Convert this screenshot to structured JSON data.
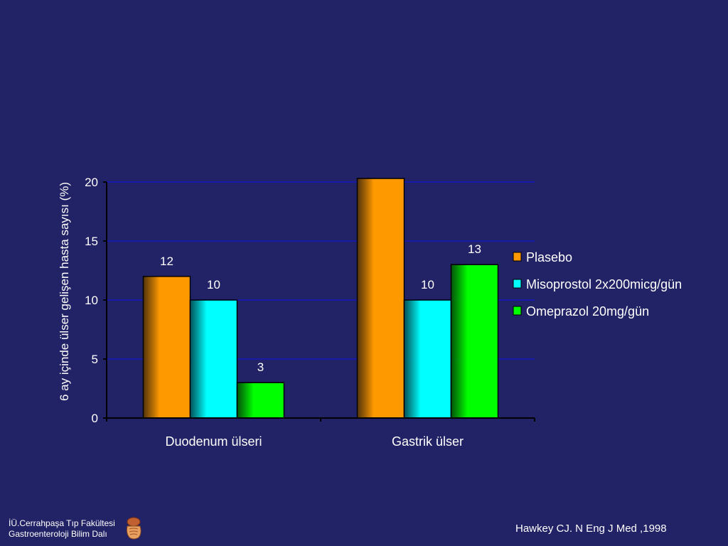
{
  "chart_data": {
    "type": "bar",
    "title": "",
    "xlabel": "",
    "ylabel": "6 ay içinde ülser  gelişen hasta sayısı (%)",
    "ylim": [
      0,
      20
    ],
    "yticks": [
      0,
      5,
      10,
      15,
      20
    ],
    "grid": true,
    "legend_position": "right",
    "categories": [
      "Duodenum ülseri",
      "Gastrik ülser"
    ],
    "series": [
      {
        "name": "Plasebo",
        "values": [
          12,
          20.3
        ],
        "labels": [
          "12",
          ""
        ],
        "color": "#ff9900"
      },
      {
        "name": "Misoprostol 2x200micg/gün",
        "values": [
          10,
          10
        ],
        "labels": [
          "10",
          "10"
        ],
        "color": "#00ffff"
      },
      {
        "name": "Omeprazol 20mg/gün",
        "values": [
          3,
          13
        ],
        "labels": [
          "3",
          "13"
        ],
        "color": "#00ff00"
      }
    ]
  },
  "footer": {
    "institution_line1": "İÜ.Cerrahpaşa Tıp Fakültesi",
    "institution_line2": "Gastroenteroloji Bilim Dalı",
    "logo_icon": "digestive-system-icon",
    "citation": "Hawkey CJ. N Eng J Med ,1998"
  },
  "colors": {
    "background": "#222266",
    "gridline": "#1a1aa8",
    "axis": "#000000",
    "text": "#ffffff"
  }
}
